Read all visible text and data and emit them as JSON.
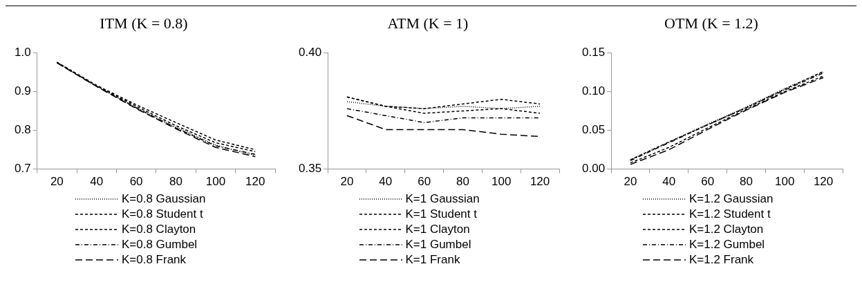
{
  "chart_data": [
    {
      "type": "line",
      "title": "ITM (K = 0.8)",
      "categories": [
        "20",
        "40",
        "60",
        "80",
        "100",
        "120"
      ],
      "ylim": [
        0.7,
        1.0
      ],
      "yticks": [
        {
          "value": 0.7,
          "label": "0.7"
        },
        0.8,
        0.9,
        {
          "value": 1,
          "label": "1.0"
        }
      ],
      "grid": false,
      "legend": "bottom",
      "marker": "none",
      "series": [
        {
          "name": "K=0.8 Gaussian",
          "color": "#000000",
          "line_style": "dotted",
          "values": [
            0.975,
            0.914,
            0.858,
            0.808,
            0.762,
            0.735
          ]
        },
        {
          "name": "K=0.8 Student t",
          "color": "#000000",
          "line_style": "dashed",
          "values": [
            0.975,
            0.915,
            0.862,
            0.812,
            0.768,
            0.745
          ]
        },
        {
          "name": "K=0.8 Clayton",
          "color": "#000000",
          "line_style": "dashed",
          "values": [
            0.976,
            0.916,
            0.866,
            0.82,
            0.775,
            0.75
          ]
        },
        {
          "name": "K=0.8 Gumbel",
          "color": "#000000",
          "line_style": "dashdot",
          "values": [
            0.975,
            0.914,
            0.858,
            0.806,
            0.76,
            0.738
          ]
        },
        {
          "name": "K=0.8 Frank",
          "color": "#000000",
          "line_style": "longdash",
          "values": [
            0.974,
            0.913,
            0.856,
            0.804,
            0.756,
            0.732
          ]
        }
      ]
    },
    {
      "type": "line",
      "title": "ATM (K = 1)",
      "categories": [
        "20",
        "40",
        "60",
        "80",
        "100",
        "120"
      ],
      "ylim": [
        0.35,
        0.4
      ],
      "yticks": [
        {
          "value": 0.35,
          "label": "0.35"
        },
        {
          "value": 0.4,
          "label": "0.40"
        }
      ],
      "grid": false,
      "legend": "bottom",
      "marker": "none",
      "series": [
        {
          "name": "K=1 Gaussian",
          "color": "#000000",
          "line_style": "dotted",
          "values": [
            0.379,
            0.377,
            0.376,
            0.377,
            0.376,
            0.377
          ]
        },
        {
          "name": "K=1 Student t",
          "color": "#000000",
          "line_style": "dashed",
          "values": [
            0.381,
            0.377,
            0.374,
            0.375,
            0.376,
            0.374
          ]
        },
        {
          "name": "K=1 Clayton",
          "color": "#000000",
          "line_style": "dashed",
          "values": [
            0.381,
            0.377,
            0.376,
            0.378,
            0.38,
            0.378
          ]
        },
        {
          "name": "K=1 Gumbel",
          "color": "#000000",
          "line_style": "dashdot",
          "values": [
            0.376,
            0.373,
            0.37,
            0.372,
            0.372,
            0.372
          ]
        },
        {
          "name": "K=1 Frank",
          "color": "#000000",
          "line_style": "longdash",
          "values": [
            0.373,
            0.367,
            0.367,
            0.367,
            0.365,
            0.364
          ]
        }
      ]
    },
    {
      "type": "line",
      "title": "OTM (K = 1.2)",
      "categories": [
        "20",
        "40",
        "60",
        "80",
        "100",
        "120"
      ],
      "ylim": [
        0,
        0.15
      ],
      "yticks": [
        {
          "value": 0,
          "label": "0.00"
        },
        0.05,
        {
          "value": 0.1,
          "label": "0.10"
        },
        0.15
      ],
      "grid": false,
      "legend": "bottom",
      "marker": "none",
      "series": [
        {
          "name": "K=1.2 Gaussian",
          "color": "#000000",
          "line_style": "dotted",
          "values": [
            0.012,
            0.035,
            0.058,
            0.08,
            0.104,
            0.125
          ]
        },
        {
          "name": "K=1.2 Student t",
          "color": "#000000",
          "line_style": "dashed",
          "values": [
            0.012,
            0.035,
            0.057,
            0.079,
            0.103,
            0.126
          ]
        },
        {
          "name": "K=1.2 Clayton",
          "color": "#000000",
          "line_style": "dashed",
          "values": [
            0.008,
            0.028,
            0.053,
            0.077,
            0.1,
            0.12
          ]
        },
        {
          "name": "K=1.2 Gumbel",
          "color": "#000000",
          "line_style": "dashdot",
          "values": [
            0.011,
            0.034,
            0.057,
            0.079,
            0.102,
            0.124
          ]
        },
        {
          "name": "K=1.2 Frank",
          "color": "#000000",
          "line_style": "longdash",
          "values": [
            0.006,
            0.025,
            0.051,
            0.076,
            0.099,
            0.118
          ]
        }
      ]
    }
  ]
}
